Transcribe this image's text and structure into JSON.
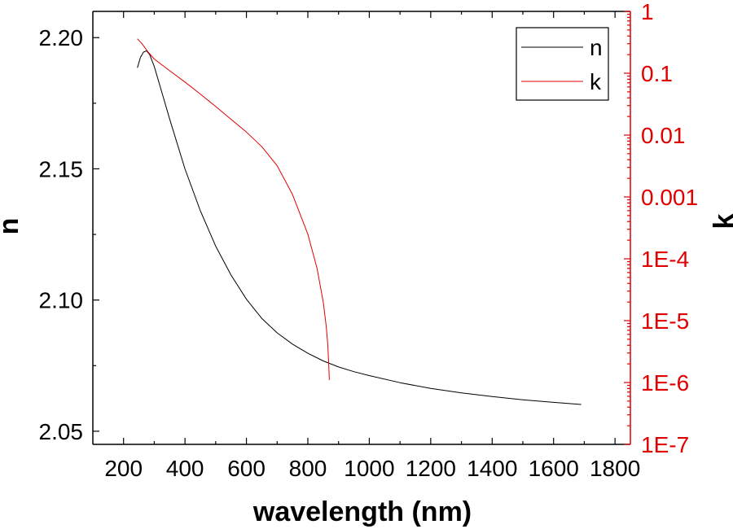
{
  "chart_data": {
    "type": "line",
    "xlabel": "wavelength (nm)",
    "ylabel": "n",
    "y2label": "k",
    "xlim": [
      100,
      1850
    ],
    "ylim": [
      2.045,
      2.21
    ],
    "y2lim": [
      1e-07,
      1
    ],
    "y2scale": "log",
    "x_ticks": [
      200,
      400,
      600,
      800,
      1000,
      1200,
      1400,
      1600,
      1800
    ],
    "x_tick_labels": [
      "200",
      "400",
      "600",
      "800",
      "1000",
      "1200",
      "1400",
      "1600",
      "1800"
    ],
    "y_ticks": [
      2.05,
      2.1,
      2.15,
      2.2
    ],
    "y_tick_labels": [
      "2.05",
      "2.10",
      "2.15",
      "2.20"
    ],
    "y2_ticks": [
      1e-07,
      1e-06,
      1e-05,
      0.0001,
      0.001,
      0.01,
      0.1,
      1
    ],
    "y2_tick_labels": [
      "1E-7",
      "1E-6",
      "1E-5",
      "1E-4",
      "0.001",
      "0.01",
      "0.1",
      "1"
    ],
    "legend_position": "top-right",
    "grid": false,
    "series": [
      {
        "name": "n",
        "axis": "left",
        "color": "#000000",
        "x": [
          245,
          255,
          265,
          275,
          285,
          300,
          320,
          350,
          400,
          450,
          500,
          550,
          600,
          650,
          700,
          750,
          800,
          850,
          900,
          950,
          1000,
          1100,
          1200,
          1300,
          1400,
          1500,
          1600,
          1690
        ],
        "y": [
          2.1885,
          2.1925,
          2.1945,
          2.195,
          2.1935,
          2.189,
          2.181,
          2.169,
          2.15,
          2.134,
          2.1205,
          2.1095,
          2.1003,
          2.093,
          2.0875,
          2.0832,
          2.0797,
          2.0768,
          2.0745,
          2.0727,
          2.0712,
          2.0685,
          2.0663,
          2.0646,
          2.0632,
          2.062,
          2.061,
          2.0602
        ]
      },
      {
        "name": "k",
        "axis": "right",
        "color": "#e00000",
        "x": [
          245,
          260,
          280,
          300,
          350,
          400,
          450,
          500,
          550,
          600,
          650,
          700,
          750,
          800,
          830,
          850,
          860,
          865,
          868,
          870
        ],
        "y": [
          0.36,
          0.3,
          0.22,
          0.17,
          0.11,
          0.072,
          0.046,
          0.029,
          0.018,
          0.0112,
          0.0065,
          0.0032,
          0.0011,
          0.00025,
          7e-05,
          2e-05,
          8e-06,
          4e-06,
          2e-06,
          1.1e-06
        ]
      }
    ]
  }
}
